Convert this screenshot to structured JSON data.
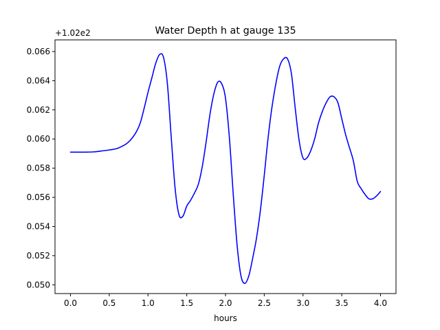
{
  "chart_data": {
    "type": "line",
    "title": "Water Depth h at gauge 135",
    "xlabel": "hours",
    "ylabel": "",
    "y_offset_label": "+1.02e2",
    "xlim": [
      -0.2,
      4.2
    ],
    "ylim": [
      0.0494,
      0.0668
    ],
    "x_ticks": [
      0.0,
      0.5,
      1.0,
      1.5,
      2.0,
      2.5,
      3.0,
      3.5,
      4.0
    ],
    "x_tick_labels": [
      "0.0",
      "0.5",
      "1.0",
      "1.5",
      "2.0",
      "2.5",
      "3.0",
      "3.5",
      "4.0"
    ],
    "y_ticks": [
      0.05,
      0.052,
      0.054,
      0.056,
      0.058,
      0.06,
      0.062,
      0.064,
      0.066
    ],
    "y_tick_labels": [
      "0.050",
      "0.052",
      "0.054",
      "0.056",
      "0.058",
      "0.060",
      "0.062",
      "0.064",
      "0.066"
    ],
    "grid": false,
    "series": [
      {
        "color": "#0000ff",
        "x": [
          0.0,
          0.1,
          0.2,
          0.3,
          0.4,
          0.5,
          0.6,
          0.7,
          0.75,
          0.8,
          0.85,
          0.9,
          0.95,
          1.0,
          1.05,
          1.1,
          1.15,
          1.2,
          1.25,
          1.3,
          1.35,
          1.4,
          1.45,
          1.5,
          1.55,
          1.6,
          1.65,
          1.7,
          1.75,
          1.8,
          1.85,
          1.9,
          1.95,
          2.0,
          2.05,
          2.1,
          2.15,
          2.2,
          2.25,
          2.3,
          2.35,
          2.4,
          2.45,
          2.5,
          2.55,
          2.6,
          2.65,
          2.7,
          2.75,
          2.8,
          2.85,
          2.9,
          2.95,
          3.0,
          3.05,
          3.1,
          3.15,
          3.2,
          3.25,
          3.3,
          3.35,
          3.4,
          3.45,
          3.5,
          3.55,
          3.6,
          3.65,
          3.7,
          3.75,
          3.8,
          3.85,
          3.9,
          3.95,
          4.0
        ],
        "y": [
          0.0591,
          0.0591,
          0.0591,
          0.05912,
          0.05918,
          0.05925,
          0.05935,
          0.0596,
          0.0598,
          0.0601,
          0.0605,
          0.0611,
          0.0621,
          0.0632,
          0.0642,
          0.0652,
          0.0658,
          0.0656,
          0.0638,
          0.0601,
          0.0566,
          0.0548,
          0.0547,
          0.0554,
          0.0558,
          0.0563,
          0.0569,
          0.0581,
          0.0598,
          0.0617,
          0.0631,
          0.0639,
          0.0638,
          0.0628,
          0.0601,
          0.0562,
          0.0527,
          0.0506,
          0.0501,
          0.0506,
          0.0518,
          0.0532,
          0.0551,
          0.0575,
          0.0601,
          0.0622,
          0.0638,
          0.065,
          0.0655,
          0.0655,
          0.0645,
          0.0621,
          0.0599,
          0.0587,
          0.0587,
          0.0592,
          0.06,
          0.0611,
          0.0619,
          0.0625,
          0.0629,
          0.0629,
          0.0625,
          0.0614,
          0.0603,
          0.0594,
          0.0585,
          0.0571,
          0.0566,
          0.0562,
          0.0559,
          0.0559,
          0.0561,
          0.0564
        ]
      }
    ]
  }
}
